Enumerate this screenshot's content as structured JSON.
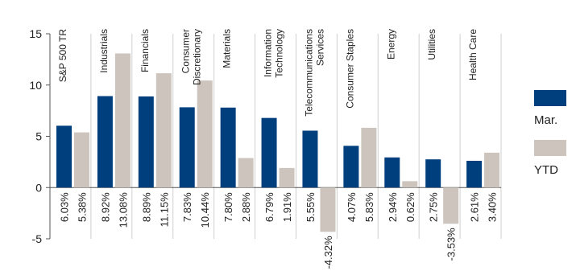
{
  "chart_data": {
    "type": "bar",
    "categories": [
      [
        "S&P 500 TR"
      ],
      [
        "Industrials"
      ],
      [
        "Financials"
      ],
      [
        "Consumer",
        "Discretionary"
      ],
      [
        "Materials"
      ],
      [
        "Information",
        "Technology"
      ],
      [
        "Telecommunications",
        "Services"
      ],
      [
        "Consumer Staples"
      ],
      [
        "Energy"
      ],
      [
        "Utilities"
      ],
      [
        "Health Care"
      ]
    ],
    "series": [
      {
        "name": "Mar.",
        "color": "#003f7d",
        "values": [
          6.03,
          8.92,
          8.89,
          7.83,
          7.8,
          6.79,
          5.55,
          4.07,
          2.94,
          2.75,
          2.61
        ],
        "labels": [
          "6.03%",
          "8.92%",
          "8.89%",
          "7.83%",
          "7.80%",
          "6.79%",
          "5.55%",
          "4.07%",
          "2.94%",
          "2.75%",
          "2.61%"
        ]
      },
      {
        "name": "YTD",
        "color": "#ccc4bd",
        "values": [
          5.38,
          13.08,
          11.15,
          10.44,
          2.88,
          1.91,
          -4.32,
          5.83,
          0.62,
          -3.53,
          3.4
        ],
        "labels": [
          "5.38%",
          "13.08%",
          "11.15%",
          "10.44%",
          "2.88%",
          "1.91%",
          "-4.32%",
          "5.83%",
          "0.62%",
          "-3.53%",
          "3.40%"
        ]
      }
    ],
    "yticks": [
      15,
      10,
      5,
      0,
      -5
    ],
    "ytick_labels": [
      "15",
      "10",
      "5",
      "0",
      "-5"
    ],
    "ylim": [
      -5,
      15
    ],
    "grid": "vertical separators",
    "legend_position": "right"
  }
}
